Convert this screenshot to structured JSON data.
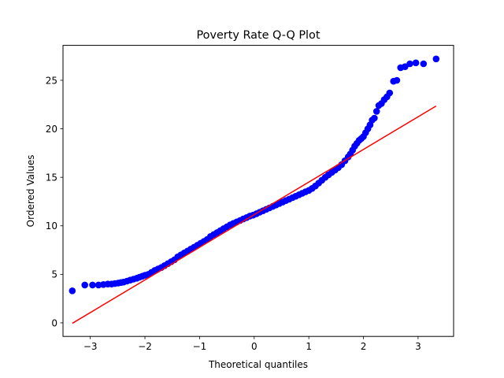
{
  "chart_data": {
    "type": "scatter",
    "title": "Poverty Rate Q-Q Plot",
    "xlabel": "Theoretical quantiles",
    "ylabel": "Ordered Values",
    "xlim": [
      -3.5,
      3.65
    ],
    "ylim": [
      -1.4,
      28.6
    ],
    "xticks": [
      -3,
      -2,
      -1,
      0,
      1,
      2,
      3
    ],
    "yticks": [
      0,
      5,
      10,
      15,
      20,
      25
    ],
    "xtick_labels": [
      "−3",
      "−2",
      "−1",
      "0",
      "1",
      "2",
      "3"
    ],
    "ytick_labels": [
      "0",
      "5",
      "10",
      "15",
      "20",
      "25"
    ],
    "grid": false,
    "colors": {
      "points": "#0000ff",
      "line": "#ff0000"
    },
    "fit_line": {
      "x": [
        -3.33,
        3.33
      ],
      "y": [
        -0.05,
        22.35
      ]
    },
    "points": {
      "x": [
        -3.33,
        -3.1,
        -2.96,
        -2.85,
        -2.76,
        -2.68,
        -2.61,
        -2.55,
        -2.49,
        -2.44,
        -2.39,
        -2.33,
        -2.27,
        -2.21,
        -2.15,
        -2.1,
        -2.05,
        -2.0,
        -1.94,
        -1.88,
        -1.82,
        -1.76,
        -1.7,
        -1.64,
        -1.58,
        -1.52,
        -1.46,
        -1.4,
        -1.34,
        -1.28,
        -1.22,
        -1.16,
        -1.1,
        -1.04,
        -0.98,
        -0.92,
        -0.86,
        -0.8,
        -0.74,
        -0.68,
        -0.62,
        -0.56,
        -0.5,
        -0.44,
        -0.38,
        -0.32,
        -0.26,
        -0.2,
        -0.14,
        -0.08,
        -0.02,
        0.04,
        0.1,
        0.16,
        0.22,
        0.28,
        0.34,
        0.4,
        0.46,
        0.52,
        0.58,
        0.64,
        0.7,
        0.76,
        0.82,
        0.88,
        0.94,
        1.0,
        1.06,
        1.12,
        1.18,
        1.24,
        1.3,
        1.36,
        1.42,
        1.48,
        1.54,
        1.6,
        1.66,
        1.72,
        1.76,
        1.8,
        1.84,
        1.88,
        1.92,
        1.96,
        2.0,
        2.04,
        2.08,
        2.12,
        2.16,
        2.2,
        2.24,
        2.28,
        2.33,
        2.38,
        2.43,
        2.48,
        2.55,
        2.61,
        2.68,
        2.76,
        2.85,
        2.96,
        3.1,
        3.33
      ],
      "y": [
        3.3,
        3.9,
        3.9,
        3.9,
        3.95,
        4.0,
        4.0,
        4.05,
        4.1,
        4.15,
        4.2,
        4.3,
        4.4,
        4.5,
        4.6,
        4.7,
        4.8,
        4.9,
        5.0,
        5.2,
        5.4,
        5.55,
        5.7,
        5.9,
        6.1,
        6.3,
        6.5,
        6.8,
        7.0,
        7.2,
        7.4,
        7.6,
        7.8,
        8.0,
        8.2,
        8.4,
        8.6,
        8.9,
        9.1,
        9.3,
        9.5,
        9.7,
        9.9,
        10.1,
        10.25,
        10.4,
        10.55,
        10.7,
        10.85,
        11.0,
        11.1,
        11.25,
        11.4,
        11.55,
        11.7,
        11.85,
        12.0,
        12.15,
        12.3,
        12.45,
        12.6,
        12.75,
        12.9,
        13.05,
        13.2,
        13.35,
        13.5,
        13.65,
        13.85,
        14.1,
        14.4,
        14.7,
        15.0,
        15.25,
        15.5,
        15.75,
        16.0,
        16.3,
        16.7,
        17.1,
        17.4,
        17.8,
        18.2,
        18.5,
        18.8,
        19.0,
        19.2,
        19.6,
        20.0,
        20.4,
        20.9,
        21.1,
        21.8,
        22.4,
        22.6,
        23.0,
        23.3,
        23.7,
        24.9,
        25.0,
        26.3,
        26.4,
        26.7,
        26.8,
        26.7,
        27.2
      ]
    }
  }
}
